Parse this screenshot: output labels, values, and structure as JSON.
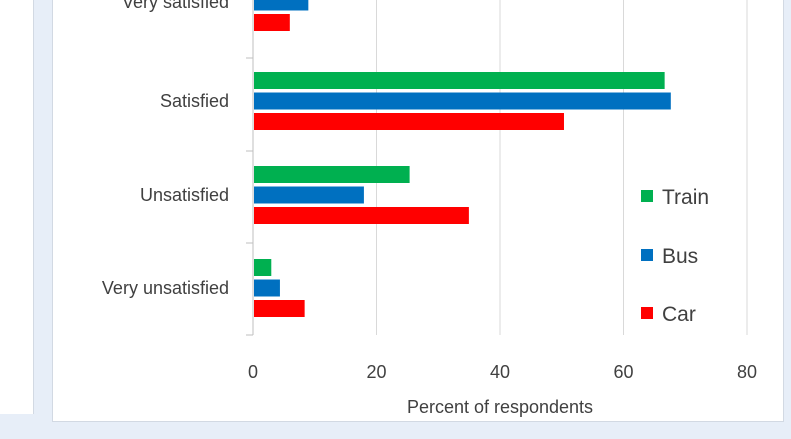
{
  "chart_data": {
    "type": "bar",
    "orientation": "horizontal",
    "categories": [
      "Very satisfied",
      "Satisfied",
      "Unsatisfied",
      "Very unsatisfied"
    ],
    "series": [
      {
        "name": "Train",
        "color": "#00b050",
        "values": [
          null,
          66.5,
          25.2,
          2.8
        ]
      },
      {
        "name": "Bus",
        "color": "#0070c0",
        "values": [
          8.8,
          67.5,
          17.8,
          4.2
        ]
      },
      {
        "name": "Car",
        "color": "#ff0000",
        "values": [
          5.8,
          50.2,
          34.8,
          8.2
        ]
      }
    ],
    "xlabel": "Percent of respondents",
    "xlim": [
      0,
      80
    ],
    "xticks": [
      0,
      20,
      40,
      60,
      80
    ],
    "grid": "vertical",
    "legend_position": "right"
  }
}
